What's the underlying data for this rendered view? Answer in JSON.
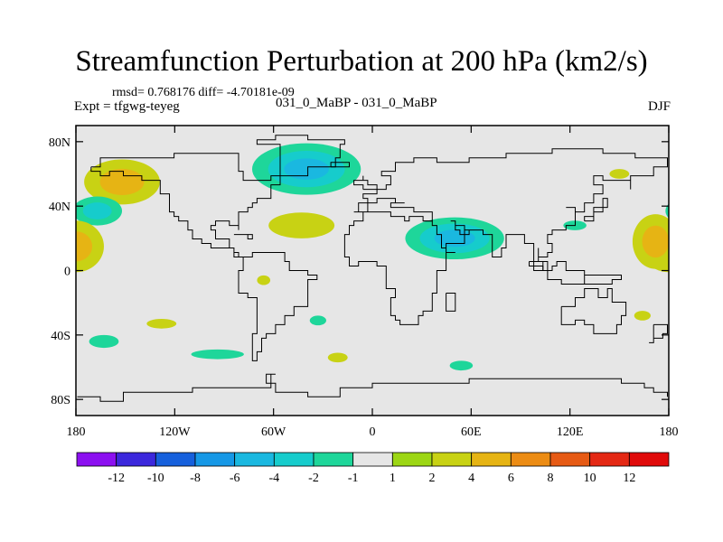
{
  "title": "Streamfunction Perturbation at 200 hPa (km2/s)",
  "stats": "rmsd= 0.768176 diff= -4.70181e-09",
  "experiment_label": "Expt = tfgwg-teyeg",
  "runs_label": "031_0_MaBP - 031_0_MaBP",
  "season": "DJF",
  "map": {
    "projection": "cylindrical-equidistant",
    "lon_range": [
      -180,
      180
    ],
    "lat_range": [
      -90,
      90
    ],
    "x_ticks": [
      {
        "lon": -180,
        "label": "180"
      },
      {
        "lon": -120,
        "label": "120W"
      },
      {
        "lon": -60,
        "label": "60W"
      },
      {
        "lon": 0,
        "label": "0"
      },
      {
        "lon": 60,
        "label": "60E"
      },
      {
        "lon": 120,
        "label": "120E"
      },
      {
        "lon": 180,
        "label": "180"
      }
    ],
    "y_ticks": [
      {
        "lat": 80,
        "label": "80N"
      },
      {
        "lat": 40,
        "label": "40N"
      },
      {
        "lat": 0,
        "label": "0"
      },
      {
        "lat": -40,
        "label": "40S"
      },
      {
        "lat": -80,
        "label": "80S"
      }
    ],
    "background_color": "#e6e6e6",
    "coast_color": "#000000"
  },
  "colorbar": {
    "colors": [
      "#8c10f0",
      "#3c28dc",
      "#1660dc",
      "#1698e6",
      "#1ab8e0",
      "#16cccc",
      "#1ed69a",
      "#e6e6e6",
      "#9cd614",
      "#c8d214",
      "#e6b414",
      "#ec8c14",
      "#e65a14",
      "#e42814",
      "#e00a0a"
    ],
    "labels": [
      "-12",
      "-10",
      "-8",
      "-6",
      "-4",
      "-2",
      "-1",
      "1",
      "2",
      "4",
      "6",
      "8",
      "10",
      "12"
    ]
  },
  "anomalies": [
    {
      "name": "n-pacific-west-positive",
      "lon": -152,
      "lat": 55,
      "rx": 23,
      "ry": 14,
      "levels": [
        2,
        4
      ]
    },
    {
      "name": "n-pacific-east-negative",
      "lon": -167,
      "lat": 37,
      "rx": 15,
      "ry": 9,
      "levels": [
        -1,
        -2
      ]
    },
    {
      "name": "pacific-dateline-positive",
      "lon": -180,
      "lat": 15,
      "rx": 17,
      "ry": 16,
      "levels": [
        2,
        4
      ]
    },
    {
      "name": "greenland-negative",
      "lon": -40,
      "lat": 63,
      "rx": 33,
      "ry": 16,
      "levels": [
        -1,
        -2,
        -4
      ]
    },
    {
      "name": "atlantic-ridge-positive",
      "lon": -43,
      "lat": 28,
      "rx": 20,
      "ry": 8,
      "levels": [
        2
      ]
    },
    {
      "name": "asia-negative",
      "lon": 50,
      "lat": 20,
      "rx": 30,
      "ry": 13,
      "levels": [
        -1,
        -2,
        -4
      ]
    },
    {
      "name": "east-asia-negative",
      "lon": 123,
      "lat": 28,
      "rx": 7,
      "ry": 3,
      "levels": [
        -1
      ]
    },
    {
      "name": "japan-positive",
      "lon": 150,
      "lat": 60,
      "rx": 6,
      "ry": 3,
      "levels": [
        2
      ]
    },
    {
      "name": "w-pacific-positive",
      "lon": 172,
      "lat": 18,
      "rx": 14,
      "ry": 17,
      "levels": [
        2,
        4
      ]
    },
    {
      "name": "c-pacific-small-positive",
      "lon": -66,
      "lat": -6,
      "rx": 4,
      "ry": 3,
      "levels": [
        2
      ]
    },
    {
      "name": "s-pacific-positive",
      "lon": -128,
      "lat": -33,
      "rx": 9,
      "ry": 3,
      "levels": [
        2
      ]
    },
    {
      "name": "s-pacific-negative",
      "lon": -163,
      "lat": -44,
      "rx": 9,
      "ry": 4,
      "levels": [
        -1
      ]
    },
    {
      "name": "s-atlantic-negative",
      "lon": -33,
      "lat": -31,
      "rx": 5,
      "ry": 3,
      "levels": [
        -1
      ]
    },
    {
      "name": "s-ocean-negative",
      "lon": -94,
      "lat": -52,
      "rx": 16,
      "ry": 3,
      "levels": [
        -1
      ]
    },
    {
      "name": "s-atlantic-positive",
      "lon": -21,
      "lat": -54,
      "rx": 6,
      "ry": 3,
      "levels": [
        2
      ]
    },
    {
      "name": "indian-ocean-negative",
      "lon": 54,
      "lat": -59,
      "rx": 7,
      "ry": 3,
      "levels": [
        -1
      ]
    },
    {
      "name": "tasman-positive",
      "lon": 164,
      "lat": -28,
      "rx": 5,
      "ry": 3,
      "levels": [
        2
      ]
    }
  ],
  "coastlines": [
    {
      "name": "north-america",
      "points": [
        [
          -170,
          65
        ],
        [
          -165,
          70
        ],
        [
          -140,
          70
        ],
        [
          -120,
          72
        ],
        [
          -95,
          72
        ],
        [
          -82,
          68
        ],
        [
          -80,
          62
        ],
        [
          -78,
          56
        ],
        [
          -62,
          58
        ],
        [
          -57,
          52
        ],
        [
          -62,
          46
        ],
        [
          -70,
          43
        ],
        [
          -74,
          40
        ],
        [
          -76,
          35
        ],
        [
          -80,
          31
        ],
        [
          -81,
          26
        ],
        [
          -82,
          29
        ],
        [
          -88,
          30
        ],
        [
          -95,
          29
        ],
        [
          -97,
          25
        ],
        [
          -95,
          19
        ],
        [
          -88,
          20
        ],
        [
          -87,
          15
        ],
        [
          -84,
          11
        ],
        [
          -80,
          8
        ],
        [
          -78,
          8
        ],
        [
          -85,
          13
        ],
        [
          -92,
          14
        ],
        [
          -98,
          16
        ],
        [
          -105,
          20
        ],
        [
          -110,
          24
        ],
        [
          -113,
          31
        ],
        [
          -117,
          33
        ],
        [
          -120,
          35
        ],
        [
          -124,
          41
        ],
        [
          -124,
          48
        ],
        [
          -130,
          55
        ],
        [
          -140,
          60
        ],
        [
          -150,
          61
        ],
        [
          -160,
          59
        ],
        [
          -165,
          62
        ],
        [
          -170,
          65
        ]
      ]
    },
    {
      "name": "greenland",
      "points": [
        [
          -55,
          60
        ],
        [
          -45,
          60
        ],
        [
          -40,
          65
        ],
        [
          -22,
          70
        ],
        [
          -20,
          78
        ],
        [
          -18,
          82
        ],
        [
          -40,
          83
        ],
        [
          -60,
          82
        ],
        [
          -70,
          78
        ],
        [
          -55,
          75
        ],
        [
          -55,
          60
        ]
      ]
    },
    {
      "name": "south-america",
      "points": [
        [
          -78,
          8
        ],
        [
          -72,
          12
        ],
        [
          -62,
          10
        ],
        [
          -52,
          5
        ],
        [
          -50,
          0
        ],
        [
          -40,
          -3
        ],
        [
          -35,
          -7
        ],
        [
          -38,
          -15
        ],
        [
          -40,
          -22
        ],
        [
          -48,
          -28
        ],
        [
          -53,
          -34
        ],
        [
          -58,
          -38
        ],
        [
          -65,
          -42
        ],
        [
          -68,
          -50
        ],
        [
          -70,
          -55
        ],
        [
          -74,
          -50
        ],
        [
          -73,
          -40
        ],
        [
          -71,
          -30
        ],
        [
          -70,
          -18
        ],
        [
          -76,
          -14
        ],
        [
          -81,
          -6
        ],
        [
          -80,
          0
        ],
        [
          -78,
          8
        ]
      ]
    },
    {
      "name": "eurasia-africa",
      "points": [
        [
          -10,
          36
        ],
        [
          -9,
          43
        ],
        [
          -2,
          44
        ],
        [
          -5,
          48
        ],
        [
          2,
          51
        ],
        [
          8,
          54
        ],
        [
          10,
          58
        ],
        [
          5,
          62
        ],
        [
          14,
          68
        ],
        [
          25,
          71
        ],
        [
          40,
          67
        ],
        [
          60,
          70
        ],
        [
          80,
          73
        ],
        [
          110,
          76
        ],
        [
          140,
          72
        ],
        [
          160,
          70
        ],
        [
          180,
          68
        ],
        [
          180,
          65
        ],
        [
          170,
          60
        ],
        [
          163,
          58
        ],
        [
          158,
          51
        ],
        [
          156,
          57
        ],
        [
          140,
          59
        ],
        [
          135,
          54
        ],
        [
          141,
          48
        ],
        [
          135,
          43
        ],
        [
          130,
          43
        ],
        [
          128,
          35
        ],
        [
          126,
          37
        ],
        [
          122,
          40
        ],
        [
          118,
          38
        ],
        [
          122,
          32
        ],
        [
          122,
          29
        ],
        [
          118,
          24
        ],
        [
          110,
          21
        ],
        [
          106,
          18
        ],
        [
          109,
          11
        ],
        [
          105,
          9
        ],
        [
          102,
          12
        ],
        [
          100,
          13
        ],
        [
          100,
          5
        ],
        [
          104,
          1
        ],
        [
          98,
          8
        ],
        [
          98,
          16
        ],
        [
          94,
          18
        ],
        [
          92,
          22
        ],
        [
          88,
          21
        ],
        [
          80,
          15
        ],
        [
          78,
          8
        ],
        [
          73,
          16
        ],
        [
          72,
          21
        ],
        [
          66,
          25
        ],
        [
          57,
          25
        ],
        [
          56,
          27
        ],
        [
          50,
          30
        ],
        [
          48,
          30
        ],
        [
          50,
          26
        ],
        [
          52,
          23
        ],
        [
          56,
          24
        ],
        [
          59,
          22
        ],
        [
          55,
          17
        ],
        [
          44,
          12
        ],
        [
          50,
          11
        ],
        [
          51,
          12
        ],
        [
          44,
          -1
        ],
        [
          40,
          -5
        ],
        [
          40,
          -15
        ],
        [
          35,
          -24
        ],
        [
          32,
          -28
        ],
        [
          28,
          -33
        ],
        [
          20,
          -35
        ],
        [
          18,
          -32
        ],
        [
          15,
          -27
        ],
        [
          12,
          -18
        ],
        [
          13,
          -12
        ],
        [
          9,
          -1
        ],
        [
          9,
          4
        ],
        [
          4,
          6
        ],
        [
          -4,
          5
        ],
        [
          -8,
          4
        ],
        [
          -13,
          8
        ],
        [
          -17,
          14
        ],
        [
          -17,
          21
        ],
        [
          -13,
          27
        ],
        [
          -10,
          31
        ],
        [
          -6,
          36
        ],
        [
          10,
          37
        ],
        [
          11,
          33
        ],
        [
          20,
          32
        ],
        [
          23,
          33
        ],
        [
          32,
          31
        ],
        [
          35,
          36
        ],
        [
          27,
          37
        ],
        [
          26,
          40
        ],
        [
          23,
          39
        ],
        [
          20,
          40
        ],
        [
          15,
          38
        ],
        [
          12,
          42
        ],
        [
          16,
          43
        ],
        [
          19,
          42
        ],
        [
          13,
          46
        ],
        [
          8,
          44
        ],
        [
          3,
          43
        ],
        [
          -3,
          37
        ],
        [
          -10,
          36
        ]
      ]
    },
    {
      "name": "arabia-red-sea",
      "points": [
        [
          32,
          31
        ],
        [
          35,
          28
        ],
        [
          39,
          22
        ],
        [
          43,
          14
        ],
        [
          45,
          13
        ]
      ]
    },
    {
      "name": "madagascar",
      "points": [
        [
          44,
          -13
        ],
        [
          50,
          -15
        ],
        [
          49,
          -24
        ],
        [
          45,
          -25
        ],
        [
          44,
          -13
        ]
      ]
    },
    {
      "name": "australia",
      "points": [
        [
          114,
          -22
        ],
        [
          122,
          -18
        ],
        [
          130,
          -12
        ],
        [
          136,
          -12
        ],
        [
          137,
          -16
        ],
        [
          142,
          -11
        ],
        [
          146,
          -19
        ],
        [
          153,
          -27
        ],
        [
          151,
          -33
        ],
        [
          148,
          -38
        ],
        [
          140,
          -38
        ],
        [
          135,
          -34
        ],
        [
          130,
          -32
        ],
        [
          124,
          -34
        ],
        [
          115,
          -34
        ],
        [
          114,
          -22
        ]
      ]
    },
    {
      "name": "new-zealand",
      "points": [
        [
          172,
          -35
        ],
        [
          178,
          -38
        ],
        [
          175,
          -42
        ],
        [
          171,
          -45
        ],
        [
          167,
          -46
        ],
        [
          172,
          -40
        ],
        [
          172,
          -35
        ]
      ]
    },
    {
      "name": "antarctica",
      "points": [
        [
          -180,
          -78
        ],
        [
          -165,
          -80
        ],
        [
          -150,
          -77
        ],
        [
          -130,
          -75
        ],
        [
          -110,
          -74
        ],
        [
          -90,
          -73
        ],
        [
          -75,
          -72
        ],
        [
          -62,
          -65
        ],
        [
          -58,
          -64
        ],
        [
          -65,
          -69
        ],
        [
          -60,
          -75
        ],
        [
          -40,
          -78
        ],
        [
          -20,
          -74
        ],
        [
          0,
          -70
        ],
        [
          30,
          -69
        ],
        [
          60,
          -67
        ],
        [
          90,
          -66
        ],
        [
          120,
          -66
        ],
        [
          150,
          -69
        ],
        [
          165,
          -72
        ],
        [
          170,
          -76
        ],
        [
          180,
          -78
        ]
      ]
    },
    {
      "name": "indonesia",
      "points": [
        [
          95,
          5
        ],
        [
          106,
          -6
        ],
        [
          115,
          -8
        ],
        [
          120,
          -9
        ],
        [
          125,
          -8
        ],
        [
          130,
          -3
        ],
        [
          140,
          -3
        ],
        [
          150,
          -6
        ],
        [
          145,
          -8
        ],
        [
          138,
          -8
        ],
        [
          130,
          -1
        ],
        [
          120,
          1
        ],
        [
          117,
          5
        ],
        [
          112,
          2
        ],
        [
          108,
          0
        ],
        [
          103,
          2
        ],
        [
          95,
          5
        ]
      ]
    },
    {
      "name": "japan",
      "points": [
        [
          130,
          32
        ],
        [
          135,
          35
        ],
        [
          140,
          38
        ],
        [
          142,
          42
        ],
        [
          144,
          44
        ],
        [
          140,
          40
        ],
        [
          135,
          33
        ],
        [
          130,
          32
        ]
      ]
    },
    {
      "name": "british-isles",
      "points": [
        [
          -6,
          50
        ],
        [
          2,
          52
        ],
        [
          -2,
          56
        ],
        [
          -5,
          59
        ],
        [
          -6,
          56
        ],
        [
          -10,
          52
        ],
        [
          -6,
          50
        ]
      ]
    },
    {
      "name": "iceland",
      "points": [
        [
          -24,
          64
        ],
        [
          -14,
          64
        ],
        [
          -14,
          66
        ],
        [
          -22,
          66
        ],
        [
          -24,
          64
        ]
      ]
    },
    {
      "name": "cuba",
      "points": [
        [
          -85,
          22
        ],
        [
          -74,
          20
        ],
        [
          -77,
          21
        ],
        [
          -85,
          22
        ]
      ]
    }
  ]
}
